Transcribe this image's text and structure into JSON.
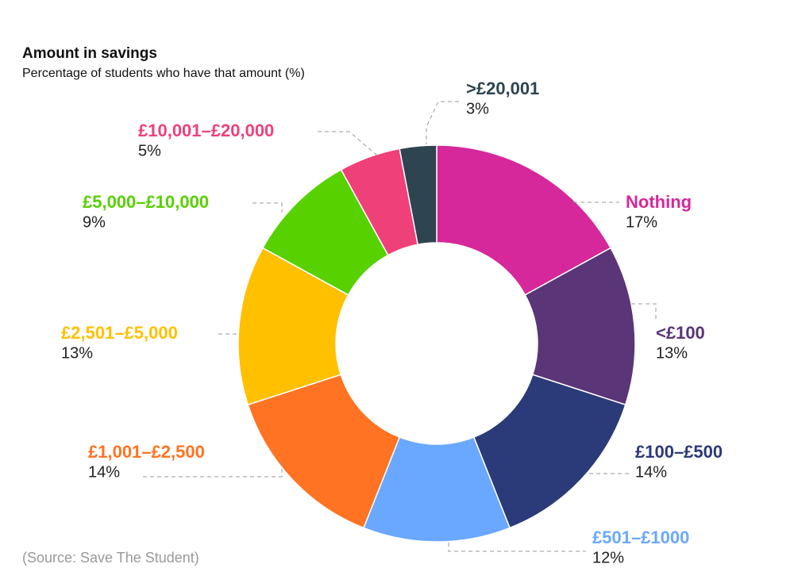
{
  "chart_data": {
    "type": "donut",
    "title": "Amount in savings",
    "subtitle": "Percentage of students who have that amount (%)",
    "source": "(Source: Save The Student)",
    "categories": [
      "Nothing",
      "<£100",
      "£100–£500",
      "£501–£1000",
      "£1,001–£2,500",
      "£2,501–£5,000",
      "£5,000–£10,000",
      "£10,001–£20,000",
      ">£20,001"
    ],
    "values": [
      17,
      13,
      14,
      12,
      14,
      13,
      9,
      5,
      3
    ],
    "value_labels": [
      "17%",
      "13%",
      "14%",
      "12%",
      "14%",
      "13%",
      "9%",
      "5%",
      "3%"
    ],
    "colors": [
      "#d6289a",
      "#5a3577",
      "#2b3a78",
      "#6aa8ff",
      "#ff7322",
      "#ffc000",
      "#57d100",
      "#f0407a",
      "#2e4450"
    ]
  }
}
